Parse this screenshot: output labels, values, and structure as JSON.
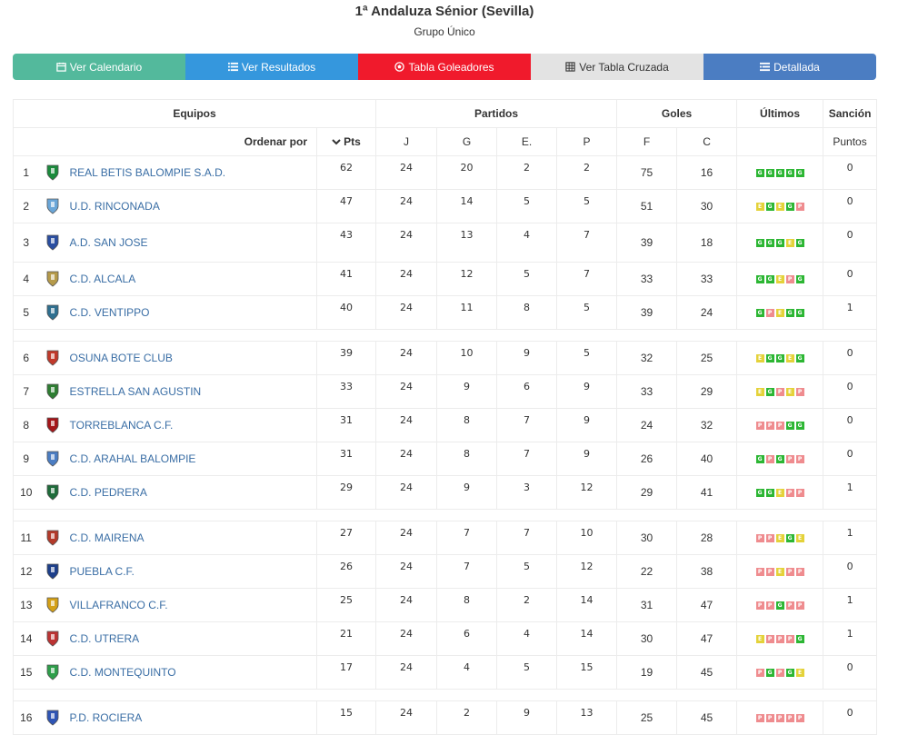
{
  "title": "1ª Andaluza Sénior (Sevilla)",
  "subtitle": "Grupo Único",
  "nav": {
    "calendario": "Ver Calendario",
    "resultados": "Ver Resultados",
    "goleadores": "Tabla Goleadores",
    "cruzada": "Ver Tabla Cruzada",
    "detallada": "Detallada"
  },
  "table": {
    "group_headers": {
      "equipos": "Equipos",
      "partidos": "Partidos",
      "goles": "Goles",
      "ultimos": "Últimos",
      "sancion": "Sanción"
    },
    "sub_headers": {
      "ordenar": "Ordenar por",
      "pts": "Pts",
      "j": "J",
      "g": "G",
      "e": "E.",
      "p": "P",
      "f": "F",
      "c": "C",
      "puntos": "Puntos"
    },
    "rows": [
      {
        "rank": "1",
        "name": "REAL BETIS BALOMPIE S.A.D.",
        "pts": "62",
        "j": "24",
        "g": "20",
        "e": "2",
        "p": "2",
        "f": "75",
        "c": "16",
        "form": [
          "G",
          "G",
          "G",
          "G",
          "G"
        ],
        "sancion": "0",
        "logo": "betis-crest"
      },
      {
        "rank": "2",
        "name": "U.D. RINCONADA",
        "pts": "47",
        "j": "24",
        "g": "14",
        "e": "5",
        "p": "5",
        "f": "51",
        "c": "30",
        "form": [
          "E",
          "G",
          "E",
          "G",
          "P"
        ],
        "sancion": "0",
        "logo": "rinconada-crest"
      },
      {
        "rank": "3",
        "name": "A.D. SAN JOSE",
        "pts": "43",
        "j": "24",
        "g": "13",
        "e": "4",
        "p": "7",
        "f": "39",
        "c": "18",
        "form": [
          "G",
          "G",
          "G",
          "E",
          "G"
        ],
        "sancion": "0",
        "logo": "sanjose-crest"
      },
      {
        "rank": "4",
        "name": "C.D. ALCALA",
        "pts": "41",
        "j": "24",
        "g": "12",
        "e": "5",
        "p": "7",
        "f": "33",
        "c": "33",
        "form": [
          "G",
          "G",
          "E",
          "P",
          "G"
        ],
        "sancion": "0",
        "logo": "alcala-crest"
      },
      {
        "rank": "5",
        "name": "C.D. VENTIPPO",
        "pts": "40",
        "j": "24",
        "g": "11",
        "e": "8",
        "p": "5",
        "f": "39",
        "c": "24",
        "form": [
          "G",
          "P",
          "E",
          "G",
          "G"
        ],
        "sancion": "1",
        "logo": "ventippo-crest"
      },
      {
        "rank": "6",
        "name": "OSUNA BOTE CLUB",
        "pts": "39",
        "j": "24",
        "g": "10",
        "e": "9",
        "p": "5",
        "f": "32",
        "c": "25",
        "form": [
          "E",
          "G",
          "G",
          "E",
          "G"
        ],
        "sancion": "0",
        "logo": "osuna-crest"
      },
      {
        "rank": "7",
        "name": "ESTRELLA SAN AGUSTIN",
        "pts": "33",
        "j": "24",
        "g": "9",
        "e": "6",
        "p": "9",
        "f": "33",
        "c": "29",
        "form": [
          "E",
          "G",
          "P",
          "E",
          "P"
        ],
        "sancion": "0",
        "logo": "estrella-crest"
      },
      {
        "rank": "8",
        "name": "TORREBLANCA C.F.",
        "pts": "31",
        "j": "24",
        "g": "8",
        "e": "7",
        "p": "9",
        "f": "24",
        "c": "32",
        "form": [
          "P",
          "P",
          "P",
          "G",
          "G"
        ],
        "sancion": "0",
        "logo": "torreblanca-crest"
      },
      {
        "rank": "9",
        "name": "C.D. ARAHAL BALOMPIE",
        "pts": "31",
        "j": "24",
        "g": "8",
        "e": "7",
        "p": "9",
        "f": "26",
        "c": "40",
        "form": [
          "G",
          "P",
          "G",
          "P",
          "P"
        ],
        "sancion": "0",
        "logo": "arahal-crest"
      },
      {
        "rank": "10",
        "name": "C.D. PEDRERA",
        "pts": "29",
        "j": "24",
        "g": "9",
        "e": "3",
        "p": "12",
        "f": "29",
        "c": "41",
        "form": [
          "G",
          "G",
          "E",
          "P",
          "P"
        ],
        "sancion": "1",
        "logo": "pedrera-crest"
      },
      {
        "rank": "11",
        "name": "C.D. MAIRENA",
        "pts": "27",
        "j": "24",
        "g": "7",
        "e": "7",
        "p": "10",
        "f": "30",
        "c": "28",
        "form": [
          "P",
          "P",
          "E",
          "G",
          "E"
        ],
        "sancion": "1",
        "logo": "mairena-crest"
      },
      {
        "rank": "12",
        "name": "PUEBLA C.F.",
        "pts": "26",
        "j": "24",
        "g": "7",
        "e": "5",
        "p": "12",
        "f": "22",
        "c": "38",
        "form": [
          "P",
          "P",
          "E",
          "P",
          "P"
        ],
        "sancion": "0",
        "logo": "puebla-crest"
      },
      {
        "rank": "13",
        "name": "VILLAFRANCO C.F.",
        "pts": "25",
        "j": "24",
        "g": "8",
        "e": "2",
        "p": "14",
        "f": "31",
        "c": "47",
        "form": [
          "P",
          "P",
          "G",
          "P",
          "P"
        ],
        "sancion": "1",
        "logo": "villafranco-crest"
      },
      {
        "rank": "14",
        "name": "C.D. UTRERA",
        "pts": "21",
        "j": "24",
        "g": "6",
        "e": "4",
        "p": "14",
        "f": "30",
        "c": "47",
        "form": [
          "E",
          "P",
          "P",
          "P",
          "G"
        ],
        "sancion": "1",
        "logo": "utrera-crest"
      },
      {
        "rank": "15",
        "name": "C.D. MONTEQUINTO",
        "pts": "17",
        "j": "24",
        "g": "4",
        "e": "5",
        "p": "15",
        "f": "19",
        "c": "45",
        "form": [
          "P",
          "G",
          "P",
          "G",
          "E"
        ],
        "sancion": "0",
        "logo": "montequinto-crest"
      },
      {
        "rank": "16",
        "name": "P.D. ROCIERA",
        "pts": "15",
        "j": "24",
        "g": "2",
        "e": "9",
        "p": "13",
        "f": "25",
        "c": "45",
        "form": [
          "P",
          "P",
          "P",
          "P",
          "P"
        ],
        "sancion": "0",
        "logo": "rociera-crest"
      }
    ]
  },
  "colors": {
    "win": "#2cb633",
    "draw": "#e4d23a",
    "loss": "#ef8c8f",
    "link": "#3a6ea5"
  }
}
